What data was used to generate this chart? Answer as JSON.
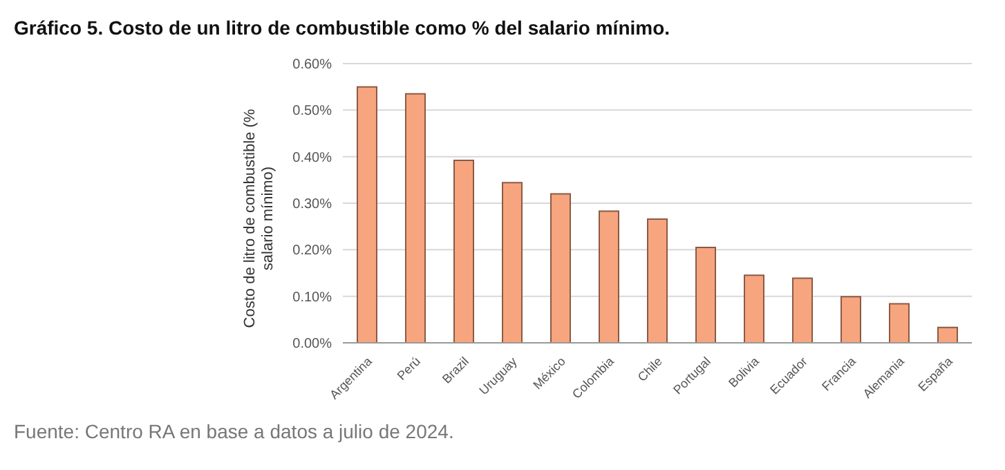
{
  "chart_data": {
    "type": "bar",
    "title": "Gráfico 5. Costo de un litro de combustible como % del salario mínimo.",
    "ylabel": "Costo de litro de combustible (% salario mínimo)",
    "categories": [
      "Argentina",
      "Perú",
      "Brazil",
      "Uruguay",
      "México",
      "Colombia",
      "Chile",
      "Portugal",
      "Bolivia",
      "Ecuador",
      "Francia",
      "Alemania",
      "España"
    ],
    "values": [
      0.55,
      0.535,
      0.392,
      0.344,
      0.32,
      0.283,
      0.266,
      0.205,
      0.145,
      0.139,
      0.099,
      0.084,
      0.033
    ],
    "color": "#f7a57e",
    "ylim": [
      0,
      0.6
    ],
    "yticks": [
      {
        "value": 0,
        "label": "0.00%"
      },
      {
        "value": 0.1,
        "label": "0.10%"
      },
      {
        "value": 0.2,
        "label": "0.20%"
      },
      {
        "value": 0.3,
        "label": "0.30%"
      },
      {
        "value": 0.4,
        "label": "0.40%"
      },
      {
        "value": 0.5,
        "label": "0.50%"
      },
      {
        "value": 0.6,
        "label": "0.60%"
      }
    ],
    "grid": "y",
    "annotations": [
      "Fuente: Centro RA en base a datos a julio de 2024."
    ]
  }
}
